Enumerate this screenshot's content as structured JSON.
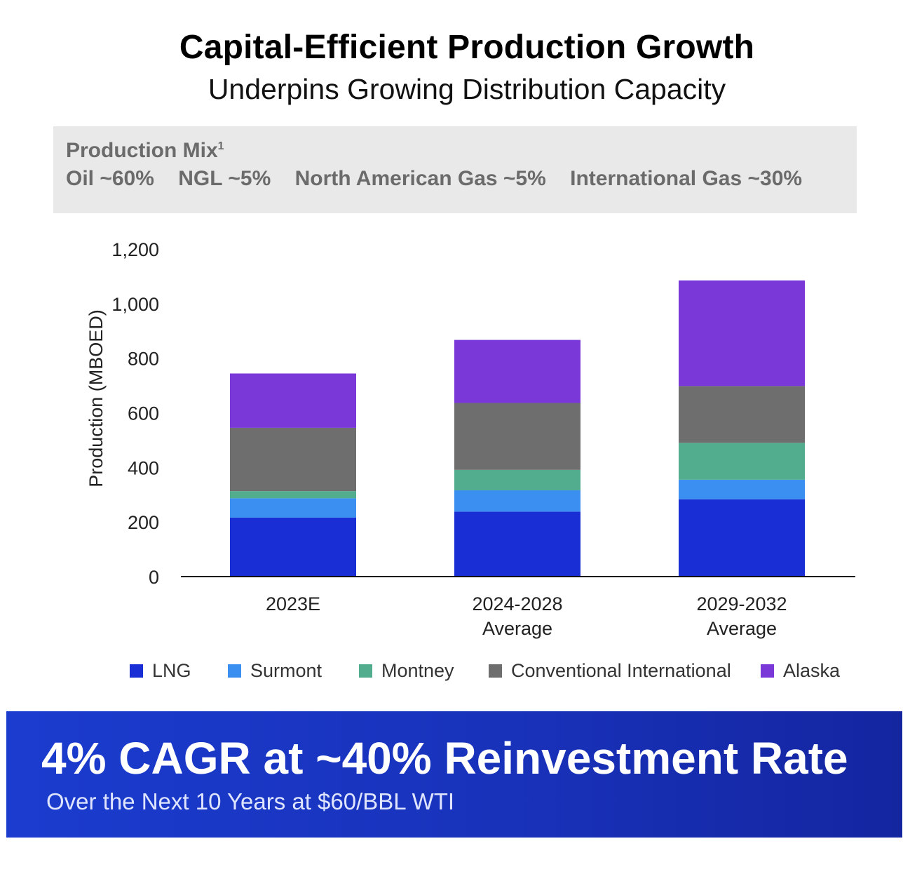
{
  "header": {
    "title": "Capital-Efficient Production Growth",
    "subtitle": "Underpins Growing Distribution Capacity"
  },
  "production_mix": {
    "title": "Production Mix",
    "footnote": "1",
    "items": [
      "Oil ~60%",
      "NGL ~5%",
      "North American Gas ~5%",
      "International Gas ~30%"
    ]
  },
  "chart_data": {
    "type": "bar",
    "stacked": true,
    "categories": [
      [
        "2023E"
      ],
      [
        "2024-2028",
        "Average"
      ],
      [
        "2029-2032",
        "Average"
      ]
    ],
    "ylabel": "Production (MBOED)",
    "ylim": [
      0,
      1200
    ],
    "yticks": [
      0,
      200,
      400,
      600,
      800,
      1000,
      1200
    ],
    "ytick_labels": [
      "0",
      "200",
      "400",
      "600",
      "800",
      "1,000",
      "1,200"
    ],
    "grid": false,
    "legend_position": "bottom",
    "series": [
      {
        "name": "LNG",
        "color": "#1a2ed6",
        "values": [
          216,
          238,
          283
        ]
      },
      {
        "name": "Surmont",
        "color": "#3a8ff0",
        "values": [
          71,
          78,
          72
        ]
      },
      {
        "name": "Montney",
        "color": "#52ac8e",
        "values": [
          26,
          75,
          135
        ]
      },
      {
        "name": "Conventional International",
        "color": "#6e6e6e",
        "values": [
          232,
          245,
          208
        ]
      },
      {
        "name": "Alaska",
        "color": "#7b38d8",
        "values": [
          199,
          231,
          387
        ]
      }
    ]
  },
  "banner": {
    "title": "4% CAGR at ~40% Reinvestment Rate",
    "subtitle": "Over the Next 10 Years at $60/BBL WTI",
    "color": "#1b3ccf"
  }
}
